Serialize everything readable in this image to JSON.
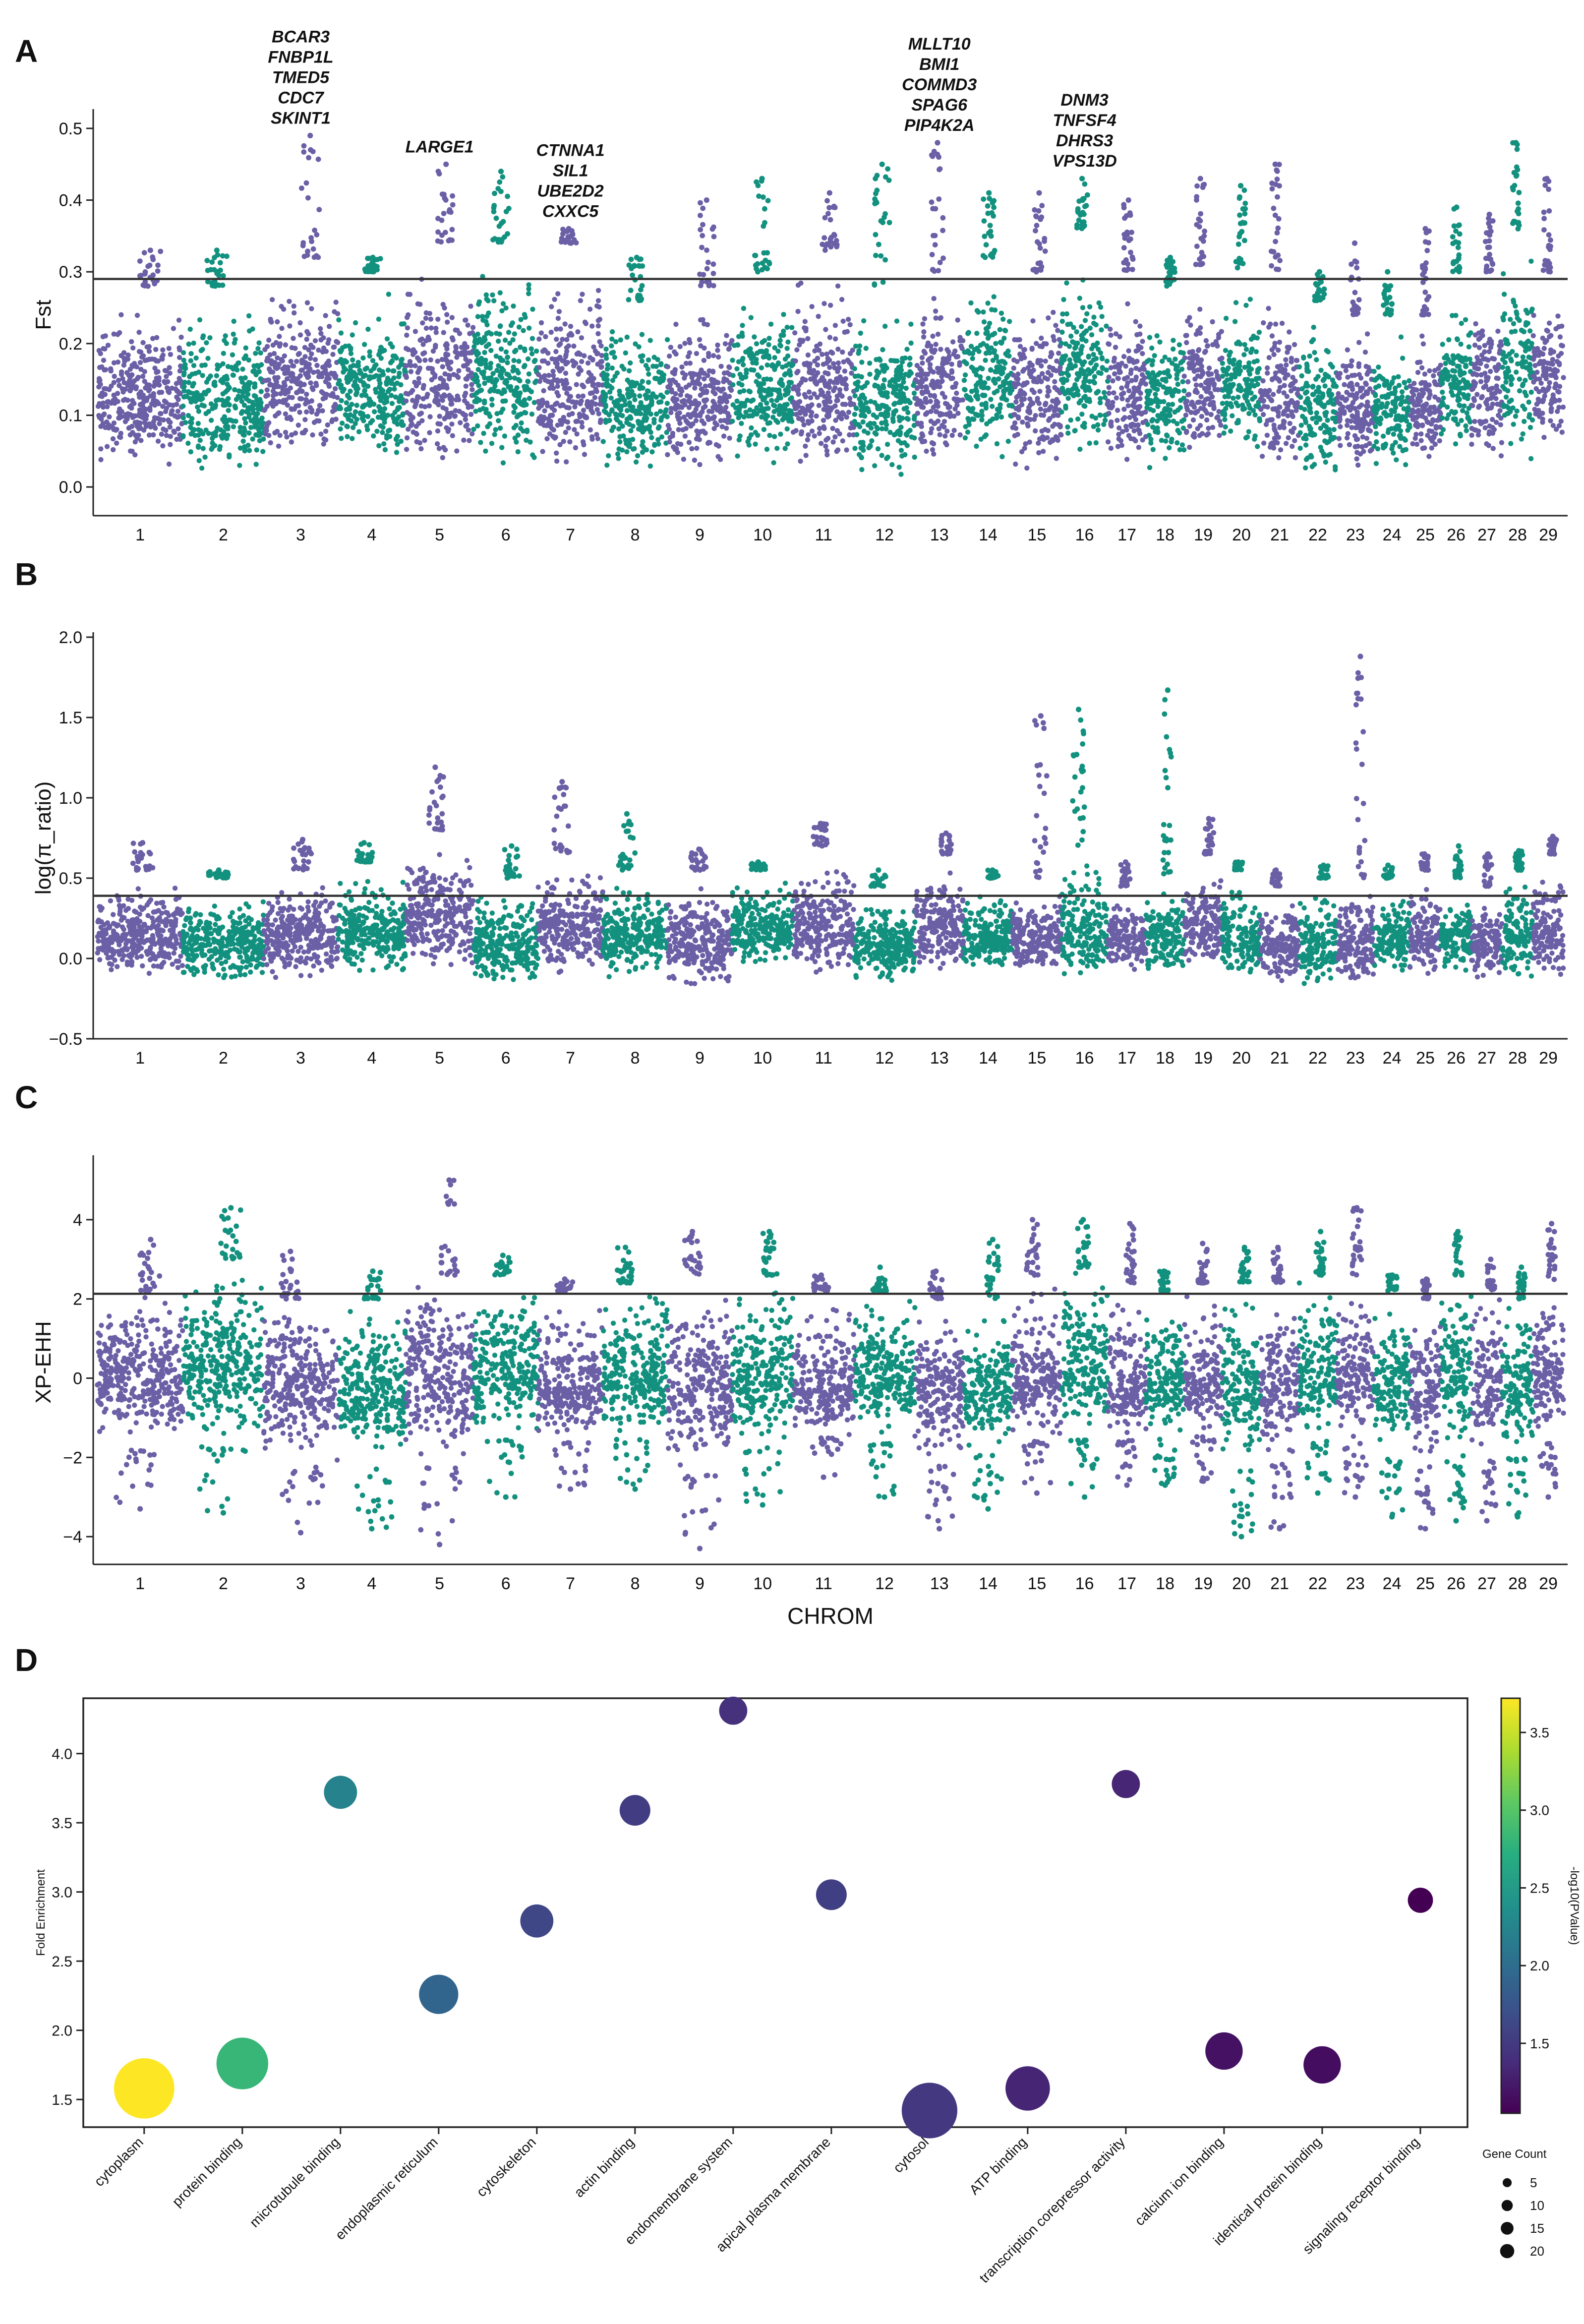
{
  "colors": {
    "purple": "#6b5fa6",
    "teal": "#13917f",
    "axis": "#222222",
    "threshold": "#333333",
    "text": "#111111",
    "cmap": [
      "#440154",
      "#472d7b",
      "#3b528b",
      "#2c728e",
      "#21918c",
      "#28ae80",
      "#5ec962",
      "#addc30",
      "#fde725"
    ]
  },
  "chart_data": [
    {
      "panel_label": "A",
      "type": "scatter",
      "subtype": "manhattan",
      "ylabel": "Fst",
      "xlabel": "",
      "ylim": [
        -0.04,
        0.52
      ],
      "yticks": [
        0.0,
        0.1,
        0.2,
        0.3,
        0.4,
        0.5
      ],
      "ytick_labels": [
        "0.0",
        "0.1",
        "0.2",
        "0.3",
        "0.4",
        "0.5"
      ],
      "threshold": 0.29,
      "chromosomes": [
        "1",
        "2",
        "3",
        "4",
        "5",
        "6",
        "7",
        "8",
        "9",
        "10",
        "11",
        "12",
        "13",
        "14",
        "15",
        "16",
        "17",
        "18",
        "19",
        "20",
        "21",
        "22",
        "23",
        "24",
        "25",
        "26",
        "27",
        "28",
        "29"
      ],
      "baseline": [
        0.09,
        0.08,
        0.11,
        0.1,
        0.1,
        0.11,
        0.1,
        0.08,
        0.09,
        0.1,
        0.1,
        0.08,
        0.1,
        0.11,
        0.09,
        0.12,
        0.09,
        0.09,
        0.1,
        0.1,
        0.09,
        0.08,
        0.08,
        0.08,
        0.08,
        0.11,
        0.1,
        0.12,
        0.12
      ],
      "typical_max": [
        0.28,
        0.28,
        0.32,
        0.3,
        0.34,
        0.34,
        0.34,
        0.26,
        0.28,
        0.3,
        0.33,
        0.28,
        0.3,
        0.32,
        0.3,
        0.36,
        0.3,
        0.28,
        0.31,
        0.3,
        0.3,
        0.26,
        0.24,
        0.24,
        0.24,
        0.3,
        0.3,
        0.36,
        0.3
      ],
      "peaks": [
        0.33,
        0.33,
        0.49,
        0.32,
        0.45,
        0.44,
        0.36,
        0.32,
        0.4,
        0.43,
        0.41,
        0.45,
        0.48,
        0.41,
        0.41,
        0.43,
        0.4,
        0.32,
        0.43,
        0.42,
        0.45,
        0.3,
        0.34,
        0.3,
        0.36,
        0.39,
        0.38,
        0.48,
        0.43
      ],
      "annotations": [
        {
          "chrom": "3",
          "genes": [
            "BCAR3",
            "FNBP1L",
            "TMED5",
            "CDC7",
            "SKINT1"
          ]
        },
        {
          "chrom": "5",
          "genes": [
            "LARGE1"
          ]
        },
        {
          "chrom": "7",
          "genes": [
            "CTNNA1",
            "SIL1",
            "UBE2D2",
            "CXXC5"
          ]
        },
        {
          "chrom": "13",
          "genes": [
            "MLLT10",
            "BMI1",
            "COMMD3",
            "SPAG6",
            "PIP4K2A"
          ]
        },
        {
          "chrom": "16",
          "genes": [
            "DNM3",
            "TNFSF4",
            "DHRS3",
            "VPS13D"
          ]
        }
      ]
    },
    {
      "panel_label": "B",
      "type": "scatter",
      "subtype": "manhattan",
      "ylabel": "log(π_ratio)",
      "xlabel": "",
      "ylim": [
        -0.5,
        2.0
      ],
      "yticks": [
        -0.5,
        0.0,
        0.5,
        1.0,
        1.5,
        2.0
      ],
      "ytick_labels": [
        "−0.5",
        "0.0",
        "0.5",
        "1.0",
        "1.5",
        "2.0"
      ],
      "threshold": 0.39,
      "chromosomes": [
        "1",
        "2",
        "3",
        "4",
        "5",
        "6",
        "7",
        "8",
        "9",
        "10",
        "11",
        "12",
        "13",
        "14",
        "15",
        "16",
        "17",
        "18",
        "19",
        "20",
        "21",
        "22",
        "23",
        "24",
        "25",
        "26",
        "27",
        "28",
        "29"
      ],
      "baseline": [
        0.05,
        0.0,
        0.05,
        0.08,
        0.15,
        0.0,
        0.1,
        0.05,
        0.0,
        0.1,
        0.1,
        0.0,
        0.1,
        0.05,
        0.05,
        0.05,
        0.05,
        0.05,
        0.1,
        0.05,
        0.0,
        0.0,
        0.0,
        0.05,
        0.05,
        0.05,
        0.0,
        0.05,
        0.05
      ],
      "typical_max": [
        0.55,
        0.5,
        0.55,
        0.6,
        0.8,
        0.5,
        0.65,
        0.55,
        0.55,
        0.55,
        0.7,
        0.45,
        0.65,
        0.5,
        0.5,
        0.7,
        0.45,
        0.5,
        0.65,
        0.55,
        0.45,
        0.5,
        0.5,
        0.5,
        0.55,
        0.5,
        0.45,
        0.55,
        0.65
      ],
      "peaks": [
        0.72,
        0.55,
        0.74,
        0.72,
        1.19,
        0.7,
        1.1,
        0.9,
        0.68,
        0.6,
        0.84,
        0.55,
        0.78,
        0.55,
        1.51,
        1.55,
        0.6,
        1.67,
        0.87,
        0.6,
        0.55,
        0.58,
        1.88,
        0.58,
        0.65,
        0.7,
        0.65,
        0.67,
        0.76
      ],
      "annotations": []
    },
    {
      "panel_label": "C",
      "type": "scatter",
      "subtype": "manhattan",
      "ylabel": "XP-EHH",
      "xlabel": "CHROM",
      "ylim": [
        -4.7,
        5.5
      ],
      "yticks": [
        -4,
        -2,
        0,
        2,
        4
      ],
      "ytick_labels": [
        "−4",
        "−2",
        "0",
        "2",
        "4"
      ],
      "threshold": 2.13,
      "chromosomes": [
        "1",
        "2",
        "3",
        "4",
        "5",
        "6",
        "7",
        "8",
        "9",
        "10",
        "11",
        "12",
        "13",
        "14",
        "15",
        "16",
        "17",
        "18",
        "19",
        "20",
        "21",
        "22",
        "23",
        "24",
        "25",
        "26",
        "27",
        "28",
        "29"
      ],
      "baseline": [
        0.0,
        0.3,
        -0.2,
        -0.4,
        0.1,
        0.2,
        -0.2,
        0.0,
        -0.2,
        0.0,
        -0.3,
        0.0,
        -0.3,
        -0.3,
        0.0,
        0.2,
        -0.2,
        -0.1,
        -0.1,
        -0.3,
        -0.1,
        0.0,
        0.1,
        -0.2,
        -0.3,
        0.1,
        -0.2,
        -0.2,
        0.0
      ],
      "typical_max": [
        2.2,
        3.0,
        2.0,
        2.0,
        2.6,
        2.6,
        2.2,
        2.4,
        2.6,
        2.6,
        2.2,
        2.2,
        2.0,
        2.0,
        2.6,
        2.8,
        2.4,
        2.2,
        2.4,
        2.4,
        2.4,
        2.6,
        2.6,
        2.2,
        2.0,
        2.6,
        2.2,
        2.0,
        2.4
      ],
      "peaks": [
        3.5,
        4.3,
        3.2,
        2.7,
        5.0,
        3.1,
        2.5,
        3.3,
        3.7,
        3.7,
        2.6,
        2.8,
        2.7,
        3.5,
        4.0,
        4.0,
        3.9,
        2.7,
        3.4,
        3.3,
        3.3,
        3.7,
        4.3,
        2.6,
        2.5,
        3.7,
        3.0,
        2.8,
        3.9
      ],
      "troughs": [
        -3.3,
        -3.4,
        -3.9,
        -3.8,
        -4.2,
        -3.0,
        -2.8,
        -2.8,
        -4.3,
        -3.2,
        -2.5,
        -3.0,
        -3.8,
        -3.3,
        -2.9,
        -3.0,
        -2.7,
        -2.7,
        -2.6,
        -4.0,
        -3.8,
        -2.9,
        -3.0,
        -3.5,
        -3.8,
        -3.6,
        -3.6,
        -3.5,
        -3.0
      ],
      "annotations": []
    },
    {
      "panel_label": "D",
      "type": "scatter",
      "subtype": "bubble",
      "ylabel": "Fold Enrichment",
      "xlabel": "",
      "ylim": [
        1.3,
        4.4
      ],
      "yticks": [
        1.5,
        2.0,
        2.5,
        3.0,
        3.5,
        4.0
      ],
      "ytick_labels": [
        "1.5",
        "2.0",
        "2.5",
        "3.0",
        "3.5",
        "4.0"
      ],
      "categories": [
        "cytoplasm",
        "protein binding",
        "microtubule binding",
        "endoplasmic reticulum",
        "cytoskeleton",
        "actin binding",
        "endomembrane system",
        "apical plasma membrane",
        "cytosol",
        "ATP binding",
        "transcription corepressor activity",
        "calcium ion binding",
        "identical protein binding",
        "signaling receptor binding"
      ],
      "fold_enrichment": [
        1.58,
        1.76,
        3.72,
        2.26,
        2.79,
        3.59,
        4.31,
        2.98,
        1.42,
        1.58,
        3.78,
        1.85,
        1.75,
        2.94
      ],
      "neg_log10_pvalue": [
        3.72,
        2.82,
        2.22,
        1.92,
        1.62,
        1.52,
        1.42,
        1.55,
        1.48,
        1.32,
        1.33,
        1.18,
        1.14,
        1.05
      ],
      "gene_count": [
        24,
        17,
        6,
        9,
        6,
        5,
        4,
        5,
        20,
        12,
        4,
        8,
        8,
        3
      ],
      "colorbar": {
        "label": "-log10(PValue)",
        "range": [
          1.05,
          3.72
        ],
        "ticks": [
          1.5,
          2.0,
          2.5,
          3.0,
          3.5
        ],
        "tick_labels": [
          "1.5",
          "2.0",
          "2.5",
          "3.0",
          "3.5"
        ]
      },
      "size_legend": {
        "title": "Gene Count",
        "values": [
          5,
          10,
          15,
          20
        ],
        "labels": [
          "5",
          "10",
          "15",
          "20"
        ]
      }
    }
  ]
}
